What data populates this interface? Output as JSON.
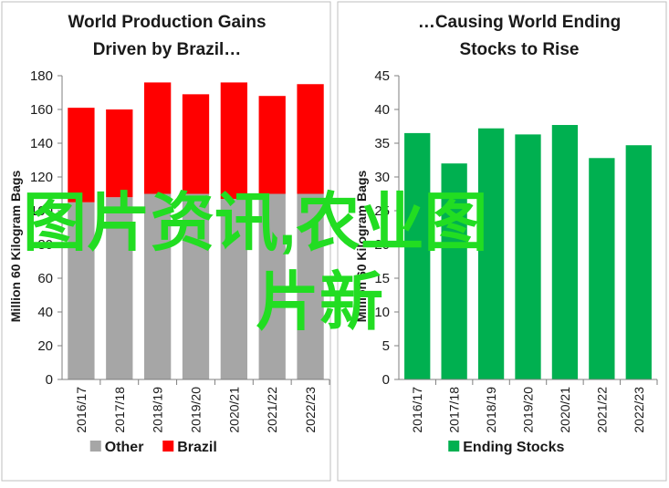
{
  "chart_data": [
    {
      "type": "bar",
      "stacked": true,
      "title_lines": [
        "World Production Gains",
        "Driven by Brazil…"
      ],
      "ylabel": "Million 60 Kilogram Bags",
      "ylim": [
        0,
        180
      ],
      "yticks": [
        0,
        20,
        40,
        60,
        80,
        100,
        120,
        140,
        160,
        180
      ],
      "categories": [
        "2016/17",
        "2017/18",
        "2018/19",
        "2019/20",
        "2020/21",
        "2021/22",
        "2022/23"
      ],
      "series": [
        {
          "name": "Other",
          "color": "#a6a6a6",
          "values": [
            105,
            108,
            110,
            110,
            107,
            110,
            110
          ]
        },
        {
          "name": "Brazil",
          "color": "#ff0000",
          "values": [
            56,
            52,
            66,
            59,
            69,
            58,
            65
          ]
        }
      ],
      "legend": "bottom"
    },
    {
      "type": "bar",
      "title_lines": [
        "…Causing World Ending",
        "Stocks to Rise"
      ],
      "ylabel": "Million 60 Kilogram Bags",
      "ylim": [
        0,
        45
      ],
      "yticks": [
        0,
        5,
        10,
        15,
        20,
        25,
        30,
        35,
        40,
        45
      ],
      "categories": [
        "2016/17",
        "2017/18",
        "2018/19",
        "2019/20",
        "2020/21",
        "2021/22",
        "2022/23"
      ],
      "series": [
        {
          "name": "Ending Stocks",
          "color": "#00b050",
          "values": [
            36.5,
            32,
            37.2,
            36.3,
            37.7,
            32.8,
            34.7
          ]
        }
      ],
      "legend": "bottom"
    }
  ],
  "watermark": {
    "line1": "图片资讯,农业图",
    "line2": "片新",
    "color": "#22dd22"
  }
}
